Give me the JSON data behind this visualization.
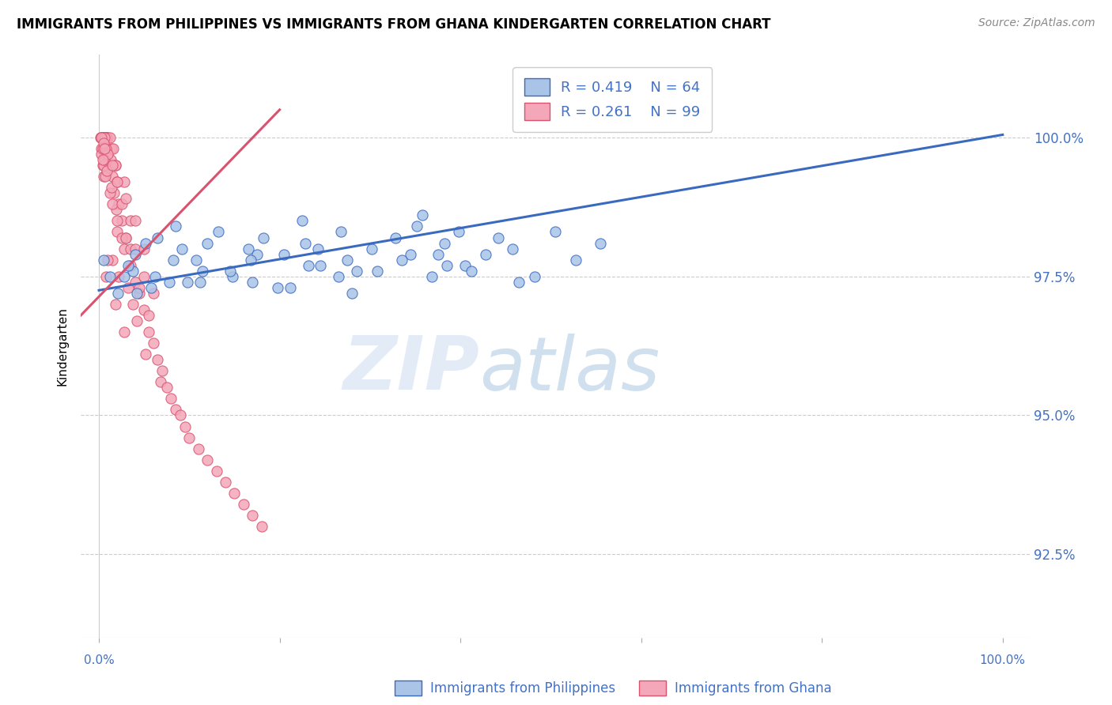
{
  "title": "IMMIGRANTS FROM PHILIPPINES VS IMMIGRANTS FROM GHANA KINDERGARTEN CORRELATION CHART",
  "source": "Source: ZipAtlas.com",
  "ylabel": "Kindergarten",
  "y_ticks": [
    92.5,
    95.0,
    97.5,
    100.0
  ],
  "y_tick_labels": [
    "92.5%",
    "95.0%",
    "97.5%",
    "100.0%"
  ],
  "ylim": [
    91.0,
    101.5
  ],
  "xlim": [
    -2.0,
    103.0
  ],
  "philippines_R": 0.419,
  "philippines_N": 64,
  "ghana_R": 0.261,
  "ghana_N": 99,
  "philippines_color": "#aac4e8",
  "ghana_color": "#f4a7b9",
  "philippines_line_color": "#3a6abf",
  "ghana_line_color": "#d9536f",
  "watermark_zip": "ZIP",
  "watermark_atlas": "atlas",
  "legend_label_philippines": "Immigrants from Philippines",
  "legend_label_ghana": "Immigrants from Ghana",
  "phil_trend_x0": 0,
  "phil_trend_y0": 97.25,
  "phil_trend_x1": 100,
  "phil_trend_y1": 100.05,
  "ghana_trend_x0": 0,
  "ghana_trend_y0": 97.1,
  "ghana_trend_x1": 20,
  "ghana_trend_y1": 100.1,
  "philippines_x": [
    1.2,
    0.5,
    2.1,
    3.8,
    5.2,
    4.0,
    6.5,
    7.8,
    3.2,
    2.8,
    8.5,
    5.8,
    9.2,
    11.5,
    13.2,
    10.8,
    12.0,
    14.8,
    16.5,
    18.2,
    17.0,
    20.5,
    22.8,
    24.5,
    21.2,
    26.8,
    28.5,
    30.2,
    27.5,
    32.8,
    34.5,
    35.2,
    36.8,
    38.2,
    40.5,
    39.8,
    41.2,
    28.0,
    33.5,
    45.8,
    48.2,
    50.5,
    42.8,
    46.5,
    35.8,
    52.8,
    55.5,
    22.5,
    19.8,
    14.5,
    11.2,
    8.2,
    6.2,
    4.2,
    17.5,
    24.2,
    30.8,
    38.5,
    44.2,
    26.5,
    16.8,
    9.8,
    37.5,
    23.2
  ],
  "philippines_y": [
    97.5,
    97.8,
    97.2,
    97.6,
    98.1,
    97.9,
    98.2,
    97.4,
    97.7,
    97.5,
    98.4,
    97.3,
    98.0,
    97.6,
    98.3,
    97.8,
    98.1,
    97.5,
    98.0,
    98.2,
    97.4,
    97.9,
    98.1,
    97.7,
    97.3,
    98.3,
    97.6,
    98.0,
    97.8,
    98.2,
    97.9,
    98.4,
    97.5,
    98.1,
    97.7,
    98.3,
    97.6,
    97.2,
    97.8,
    98.0,
    97.5,
    98.3,
    97.9,
    97.4,
    98.6,
    97.8,
    98.1,
    98.5,
    97.3,
    97.6,
    97.4,
    97.8,
    97.5,
    97.2,
    97.9,
    98.0,
    97.6,
    97.7,
    98.2,
    97.5,
    97.8,
    97.4,
    97.9,
    97.7
  ],
  "ghana_x": [
    0.2,
    0.3,
    0.4,
    0.5,
    0.3,
    0.6,
    0.5,
    0.8,
    0.4,
    0.6,
    0.7,
    0.9,
    1.0,
    0.8,
    1.2,
    0.6,
    1.4,
    1.1,
    1.6,
    1.3,
    1.8,
    1.5,
    2.0,
    1.7,
    2.2,
    1.9,
    0.3,
    0.4,
    0.5,
    2.5,
    2.0,
    3.0,
    2.8,
    1.5,
    3.5,
    2.2,
    4.0,
    3.2,
    4.5,
    3.8,
    5.0,
    4.2,
    5.5,
    6.0,
    5.2,
    6.5,
    7.0,
    6.8,
    7.5,
    8.0,
    8.5,
    9.0,
    9.5,
    10.0,
    11.0,
    12.0,
    13.0,
    14.0,
    15.0,
    16.0,
    17.0,
    18.0,
    2.5,
    1.0,
    3.5,
    0.8,
    4.5,
    1.8,
    5.5,
    2.8,
    0.3,
    0.5,
    0.7,
    1.2,
    1.5,
    2.0,
    3.0,
    4.0,
    5.0,
    6.0,
    0.4,
    0.6,
    0.9,
    1.4,
    2.5,
    3.5,
    0.3,
    0.8,
    1.8,
    2.8,
    0.5,
    1.0,
    0.6,
    1.5,
    2.0,
    3.0,
    4.0,
    5.0,
    0.4
  ],
  "ghana_y": [
    100.0,
    100.0,
    100.0,
    100.0,
    100.0,
    100.0,
    100.0,
    100.0,
    100.0,
    100.0,
    100.0,
    100.0,
    100.0,
    100.0,
    100.0,
    100.0,
    99.8,
    99.5,
    99.8,
    99.6,
    99.5,
    99.3,
    99.2,
    99.0,
    98.8,
    98.7,
    99.8,
    99.5,
    99.3,
    98.5,
    98.3,
    98.2,
    98.0,
    97.8,
    97.7,
    97.5,
    97.4,
    97.3,
    97.2,
    97.0,
    96.9,
    96.7,
    96.5,
    96.3,
    96.1,
    96.0,
    95.8,
    95.6,
    95.5,
    95.3,
    95.1,
    95.0,
    94.8,
    94.6,
    94.4,
    94.2,
    94.0,
    93.8,
    93.6,
    93.4,
    93.2,
    93.0,
    98.2,
    97.8,
    98.0,
    97.5,
    97.3,
    97.0,
    96.8,
    96.5,
    99.7,
    99.5,
    99.3,
    99.0,
    98.8,
    98.5,
    98.2,
    98.0,
    97.5,
    97.2,
    99.8,
    99.6,
    99.4,
    99.1,
    98.8,
    98.5,
    100.0,
    99.8,
    99.5,
    99.2,
    99.9,
    99.7,
    99.8,
    99.5,
    99.2,
    98.9,
    98.5,
    98.0,
    99.6
  ]
}
